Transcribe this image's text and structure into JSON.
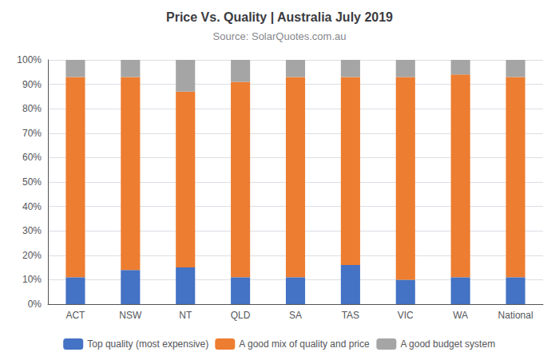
{
  "chart_data": {
    "type": "bar",
    "title": "Price Vs. Quality | Australia July 2019",
    "subtitle": "Source: SolarQuotes.com.au",
    "categories": [
      "ACT",
      "NSW",
      "NT",
      "QLD",
      "SA",
      "TAS",
      "VIC",
      "WA",
      "National"
    ],
    "series": [
      {
        "name": "Top quality (most expensive)",
        "color": "#4472C4",
        "values": [
          11,
          14,
          15,
          11,
          11,
          16,
          10,
          11,
          11
        ]
      },
      {
        "name": "A good mix of quality and price",
        "color": "#ED7D31",
        "values": [
          82,
          79,
          72,
          80,
          82,
          77,
          83,
          83,
          82
        ]
      },
      {
        "name": "A good budget system",
        "color": "#A5A5A5",
        "values": [
          7,
          7,
          13,
          9,
          7,
          7,
          7,
          6,
          7
        ]
      }
    ],
    "ylim": [
      0,
      100
    ],
    "yticks": [
      {
        "value": 0,
        "label": "0%"
      },
      {
        "value": 10,
        "label": "10%"
      },
      {
        "value": 20,
        "label": "20%"
      },
      {
        "value": 30,
        "label": "30%"
      },
      {
        "value": 40,
        "label": "40%"
      },
      {
        "value": 50,
        "label": "50%"
      },
      {
        "value": 60,
        "label": "60%"
      },
      {
        "value": 70,
        "label": "70%"
      },
      {
        "value": 80,
        "label": "80%"
      },
      {
        "value": 90,
        "label": "90%"
      },
      {
        "value": 100,
        "label": "100%"
      }
    ],
    "grid": true,
    "legend": "bottom",
    "stacked": true
  }
}
